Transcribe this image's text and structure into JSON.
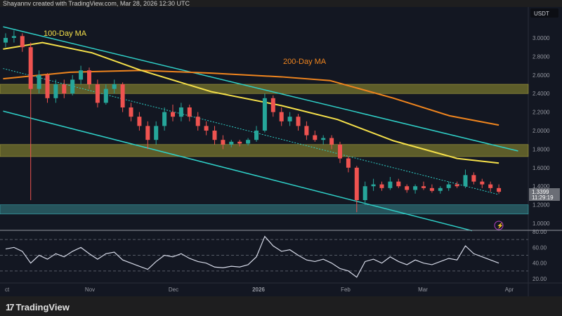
{
  "header": {
    "credit": "Shayannv created with TradingView.com, Mar 28, 2026 12:30 UTC"
  },
  "footer": {
    "brand": "TradingView",
    "logo": "tradingview-logo"
  },
  "price_scale": {
    "currency": "USDT",
    "last_price": "1.3399",
    "countdown": "11:29:19"
  },
  "colors": {
    "bg": "#131722",
    "up": "#26a69a",
    "down": "#ef5350",
    "ma100": "#f5e04a",
    "ma200": "#f0851e",
    "channel": "#2fd0c8",
    "zone_yellow": "#6b6a2c",
    "zone_teal": "#2a5f66",
    "rsi": "#d6dae8"
  },
  "chart_data": [
    {
      "type": "candlestick",
      "title": "",
      "annotations": [
        "100-Day MA",
        "200-Day MA"
      ],
      "y_ticks": [
        "3.0000",
        "2.8000",
        "2.6000",
        "2.4000",
        "2.2000",
        "2.0000",
        "1.8000",
        "1.6000",
        "1.4000",
        "1.2000",
        "1.0000"
      ],
      "x_ticks": [
        "ct",
        "Nov",
        "Dec",
        "2026",
        "Feb",
        "Mar",
        "Apr"
      ],
      "ylim": [
        0.9,
        3.2
      ],
      "candles": [
        [
          2.95,
          3.05,
          2.9,
          3.0
        ],
        [
          3.0,
          3.08,
          2.95,
          3.02
        ],
        [
          3.02,
          3.05,
          2.85,
          2.9
        ],
        [
          2.9,
          2.95,
          1.25,
          2.45
        ],
        [
          2.45,
          2.65,
          2.4,
          2.6
        ],
        [
          2.6,
          2.62,
          2.3,
          2.35
        ],
        [
          2.35,
          2.55,
          2.3,
          2.5
        ],
        [
          2.5,
          2.55,
          2.35,
          2.4
        ],
        [
          2.4,
          2.6,
          2.38,
          2.55
        ],
        [
          2.55,
          2.7,
          2.5,
          2.65
        ],
        [
          2.65,
          2.68,
          2.45,
          2.5
        ],
        [
          2.5,
          2.55,
          2.25,
          2.3
        ],
        [
          2.3,
          2.5,
          2.28,
          2.45
        ],
        [
          2.45,
          2.55,
          2.4,
          2.5
        ],
        [
          2.5,
          2.52,
          2.2,
          2.25
        ],
        [
          2.25,
          2.3,
          2.1,
          2.15
        ],
        [
          2.15,
          2.2,
          2.0,
          2.05
        ],
        [
          2.05,
          2.1,
          1.8,
          1.9
        ],
        [
          1.9,
          2.1,
          1.85,
          2.05
        ],
        [
          2.05,
          2.25,
          2.0,
          2.2
        ],
        [
          2.2,
          2.28,
          2.1,
          2.15
        ],
        [
          2.15,
          2.3,
          2.1,
          2.25
        ],
        [
          2.25,
          2.28,
          2.1,
          2.15
        ],
        [
          2.15,
          2.2,
          2.0,
          2.05
        ],
        [
          2.05,
          2.1,
          1.95,
          2.0
        ],
        [
          2.0,
          2.05,
          1.85,
          1.9
        ],
        [
          1.9,
          1.95,
          1.8,
          1.85
        ],
        [
          1.85,
          1.9,
          1.82,
          1.88
        ],
        [
          1.88,
          1.9,
          1.83,
          1.86
        ],
        [
          1.86,
          1.92,
          1.84,
          1.9
        ],
        [
          1.9,
          2.05,
          1.88,
          2.0
        ],
        [
          2.0,
          2.4,
          1.98,
          2.35
        ],
        [
          2.35,
          2.38,
          2.15,
          2.2
        ],
        [
          2.2,
          2.25,
          2.05,
          2.1
        ],
        [
          2.1,
          2.2,
          2.05,
          2.15
        ],
        [
          2.15,
          2.18,
          2.0,
          2.05
        ],
        [
          2.05,
          2.1,
          1.9,
          1.95
        ],
        [
          1.95,
          2.0,
          1.88,
          1.9
        ],
        [
          1.9,
          1.95,
          1.85,
          1.92
        ],
        [
          1.92,
          1.95,
          1.8,
          1.85
        ],
        [
          1.85,
          1.88,
          1.65,
          1.7
        ],
        [
          1.7,
          1.72,
          1.55,
          1.6
        ],
        [
          1.6,
          1.62,
          1.12,
          1.25
        ],
        [
          1.25,
          1.45,
          1.2,
          1.4
        ],
        [
          1.4,
          1.48,
          1.35,
          1.42
        ],
        [
          1.42,
          1.45,
          1.35,
          1.38
        ],
        [
          1.38,
          1.5,
          1.36,
          1.45
        ],
        [
          1.45,
          1.48,
          1.38,
          1.4
        ],
        [
          1.4,
          1.42,
          1.33,
          1.36
        ],
        [
          1.36,
          1.42,
          1.32,
          1.4
        ],
        [
          1.4,
          1.45,
          1.36,
          1.38
        ],
        [
          1.38,
          1.42,
          1.33,
          1.35
        ],
        [
          1.35,
          1.4,
          1.32,
          1.38
        ],
        [
          1.38,
          1.45,
          1.35,
          1.42
        ],
        [
          1.42,
          1.45,
          1.38,
          1.4
        ],
        [
          1.4,
          1.58,
          1.38,
          1.52
        ],
        [
          1.52,
          1.55,
          1.42,
          1.45
        ],
        [
          1.45,
          1.48,
          1.38,
          1.42
        ],
        [
          1.42,
          1.45,
          1.34,
          1.38
        ],
        [
          1.38,
          1.42,
          1.32,
          1.34
        ]
      ],
      "ma100": [
        [
          -0.3,
          2.88
        ],
        [
          4.4,
          2.95
        ],
        [
          10.3,
          2.84
        ],
        [
          16.2,
          2.65
        ],
        [
          24.6,
          2.42
        ],
        [
          33,
          2.27
        ],
        [
          39.7,
          2.12
        ],
        [
          46.4,
          1.89
        ],
        [
          54,
          1.7
        ],
        [
          59,
          1.65
        ]
      ],
      "ma200": [
        [
          -0.3,
          2.56
        ],
        [
          7.7,
          2.63
        ],
        [
          16.2,
          2.65
        ],
        [
          24.6,
          2.62
        ],
        [
          33,
          2.58
        ],
        [
          38.8,
          2.54
        ],
        [
          46.4,
          2.35
        ],
        [
          53.1,
          2.16
        ],
        [
          59,
          2.06
        ]
      ],
      "channel_upper": [
        [
          -0.3,
          3.12
        ],
        [
          61.3,
          1.78
        ]
      ],
      "channel_lower": [
        [
          -0.3,
          2.21
        ],
        [
          55.8,
          0.92
        ]
      ],
      "channel_mid": [
        [
          -0.3,
          2.67
        ],
        [
          59,
          1.31
        ]
      ],
      "zones": [
        {
          "from": 2.4,
          "to": 2.5,
          "color": "yellow"
        },
        {
          "from": 1.72,
          "to": 1.85,
          "color": "yellow"
        },
        {
          "from": 1.1,
          "to": 1.2,
          "color": "teal"
        }
      ]
    },
    {
      "type": "line",
      "title": "",
      "y_ticks": [
        "80.00",
        "60.00",
        "40.00",
        "20.00"
      ],
      "ylim": [
        20,
        80
      ],
      "levels": [
        70,
        50,
        30
      ],
      "values": [
        58,
        60,
        55,
        40,
        50,
        45,
        52,
        48,
        55,
        60,
        52,
        45,
        52,
        54,
        44,
        40,
        36,
        32,
        42,
        50,
        48,
        52,
        46,
        42,
        40,
        35,
        34,
        36,
        35,
        38,
        48,
        74,
        62,
        55,
        57,
        50,
        44,
        42,
        45,
        40,
        33,
        30,
        22,
        42,
        45,
        40,
        48,
        42,
        38,
        44,
        40,
        38,
        42,
        46,
        44,
        62,
        52,
        48,
        44,
        40
      ]
    }
  ]
}
